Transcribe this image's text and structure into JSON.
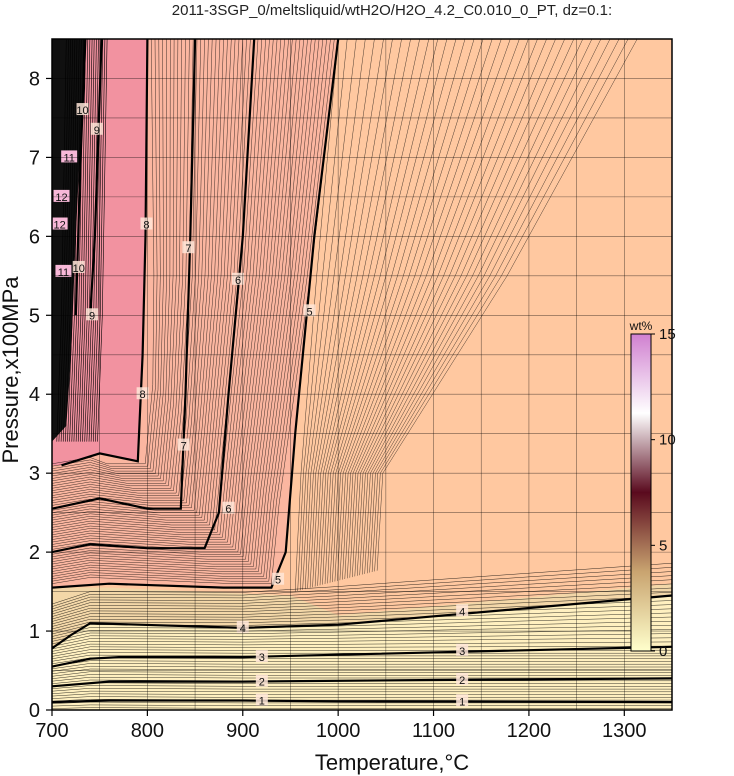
{
  "chart_data": {
    "type": "heatmap",
    "title": "2011-3SGP_0/meltsliquid/wtH2O/H2O_4.2_C0.010_0_PT, dz=0.1:",
    "xlabel": "Temperature,°C",
    "ylabel": "Pressure,x100MPa",
    "xlim": [
      700,
      1350
    ],
    "ylim": [
      0,
      8.5
    ],
    "x_ticks": [
      "700",
      "800",
      "900",
      "1000",
      "1100",
      "1200",
      "1300"
    ],
    "y_ticks": [
      "0",
      "1",
      "2",
      "3",
      "4",
      "5",
      "6",
      "7",
      "8"
    ],
    "grid": true,
    "colorbar": {
      "title": "wt%",
      "range": [
        0,
        15
      ],
      "ticks": [
        "0",
        "5",
        "10",
        "15"
      ],
      "colors": [
        "#ffffcc",
        "#c9a470",
        "#5a0a1e",
        "#ffffff",
        "#d080d0"
      ]
    },
    "region_colors": {
      "water_saturated_fill": "#ffc8a0",
      "low_pressure_fill": "#fff0c0",
      "high_water_fill": "#f08aa0"
    },
    "contour_labels": [
      "1",
      "2",
      "3",
      "4",
      "5",
      "6",
      "7",
      "8",
      "9",
      "10",
      "11",
      "12"
    ],
    "major_contours": [
      {
        "value": 1,
        "points": [
          [
            700,
            0.1
          ],
          [
            760,
            0.12
          ],
          [
            900,
            0.12
          ],
          [
            1000,
            0.11
          ],
          [
            1350,
            0.1
          ]
        ]
      },
      {
        "value": 2,
        "points": [
          [
            700,
            0.3
          ],
          [
            760,
            0.36
          ],
          [
            900,
            0.36
          ],
          [
            1100,
            0.38
          ],
          [
            1350,
            0.4
          ]
        ]
      },
      {
        "value": 3,
        "points": [
          [
            700,
            0.55
          ],
          [
            740,
            0.65
          ],
          [
            770,
            0.67
          ],
          [
            900,
            0.67
          ],
          [
            1000,
            0.7
          ],
          [
            1350,
            0.8
          ]
        ]
      },
      {
        "value": 4,
        "points": [
          [
            700,
            0.78
          ],
          [
            720,
            0.95
          ],
          [
            740,
            1.1
          ],
          [
            900,
            1.04
          ],
          [
            1000,
            1.08
          ],
          [
            1350,
            1.45
          ]
        ]
      },
      {
        "value": 5,
        "points": [
          [
            700,
            1.55
          ],
          [
            760,
            1.6
          ],
          [
            880,
            1.55
          ],
          [
            930,
            1.55
          ],
          [
            945,
            2.0
          ],
          [
            955,
            3.5
          ],
          [
            975,
            6.0
          ],
          [
            990,
            7.5
          ],
          [
            1000,
            8.5
          ]
        ]
      },
      {
        "value": 6,
        "points": [
          [
            700,
            2.0
          ],
          [
            740,
            2.1
          ],
          [
            800,
            2.05
          ],
          [
            860,
            2.05
          ],
          [
            875,
            2.5
          ],
          [
            885,
            4.0
          ],
          [
            900,
            6.0
          ],
          [
            912,
            8.5
          ]
        ]
      },
      {
        "value": 7,
        "points": [
          [
            700,
            2.55
          ],
          [
            750,
            2.68
          ],
          [
            800,
            2.55
          ],
          [
            835,
            2.55
          ],
          [
            840,
            4.0
          ],
          [
            845,
            6.0
          ],
          [
            850,
            8.5
          ]
        ]
      },
      {
        "value": 8,
        "points": [
          [
            710,
            3.1
          ],
          [
            750,
            3.25
          ],
          [
            790,
            3.15
          ],
          [
            795,
            4.5
          ],
          [
            798,
            6.0
          ],
          [
            800,
            8.5
          ]
        ]
      },
      {
        "value": 9,
        "points": [
          [
            740,
            5.0
          ],
          [
            745,
            6.0
          ],
          [
            752,
            8.5
          ]
        ]
      },
      {
        "value": 10,
        "points": [
          [
            725,
            5.0
          ],
          [
            730,
            7.0
          ],
          [
            735,
            8.5
          ]
        ]
      }
    ]
  }
}
